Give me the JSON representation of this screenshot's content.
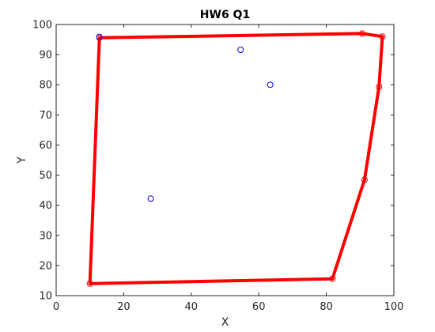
{
  "chart_data": {
    "type": "scatter",
    "title": "HW6 Q1",
    "xlabel": "X",
    "ylabel": "Y",
    "xlim": [
      0,
      100
    ],
    "ylim": [
      10,
      100
    ],
    "xticks": [
      "0",
      "20",
      "40",
      "60",
      "80",
      "100"
    ],
    "yticks": [
      "10",
      "20",
      "30",
      "40",
      "50",
      "60",
      "70",
      "80",
      "90",
      "100"
    ],
    "grid": false,
    "interior_points": {
      "color": "#0000ff",
      "points": [
        {
          "x": 12.8,
          "y": 95.9
        },
        {
          "x": 54.6,
          "y": 91.6
        },
        {
          "x": 63.4,
          "y": 80.0
        },
        {
          "x": 28.0,
          "y": 42.2
        }
      ]
    },
    "hull_points": {
      "color": "#ff0000",
      "points": [
        {
          "x": 10.0,
          "y": 14.0
        },
        {
          "x": 12.8,
          "y": 95.6
        },
        {
          "x": 90.6,
          "y": 97.0
        },
        {
          "x": 96.6,
          "y": 96.0
        },
        {
          "x": 95.6,
          "y": 79.3
        },
        {
          "x": 91.3,
          "y": 48.5
        },
        {
          "x": 81.8,
          "y": 15.6
        }
      ]
    },
    "hull_line": {
      "color": "#ff0000",
      "path": [
        {
          "x": 10.0,
          "y": 14.0
        },
        {
          "x": 12.8,
          "y": 95.6
        },
        {
          "x": 90.6,
          "y": 97.0
        },
        {
          "x": 96.6,
          "y": 96.0
        },
        {
          "x": 95.6,
          "y": 79.3
        },
        {
          "x": 91.3,
          "y": 48.5
        },
        {
          "x": 81.8,
          "y": 15.6
        },
        {
          "x": 10.0,
          "y": 14.0
        }
      ]
    }
  }
}
